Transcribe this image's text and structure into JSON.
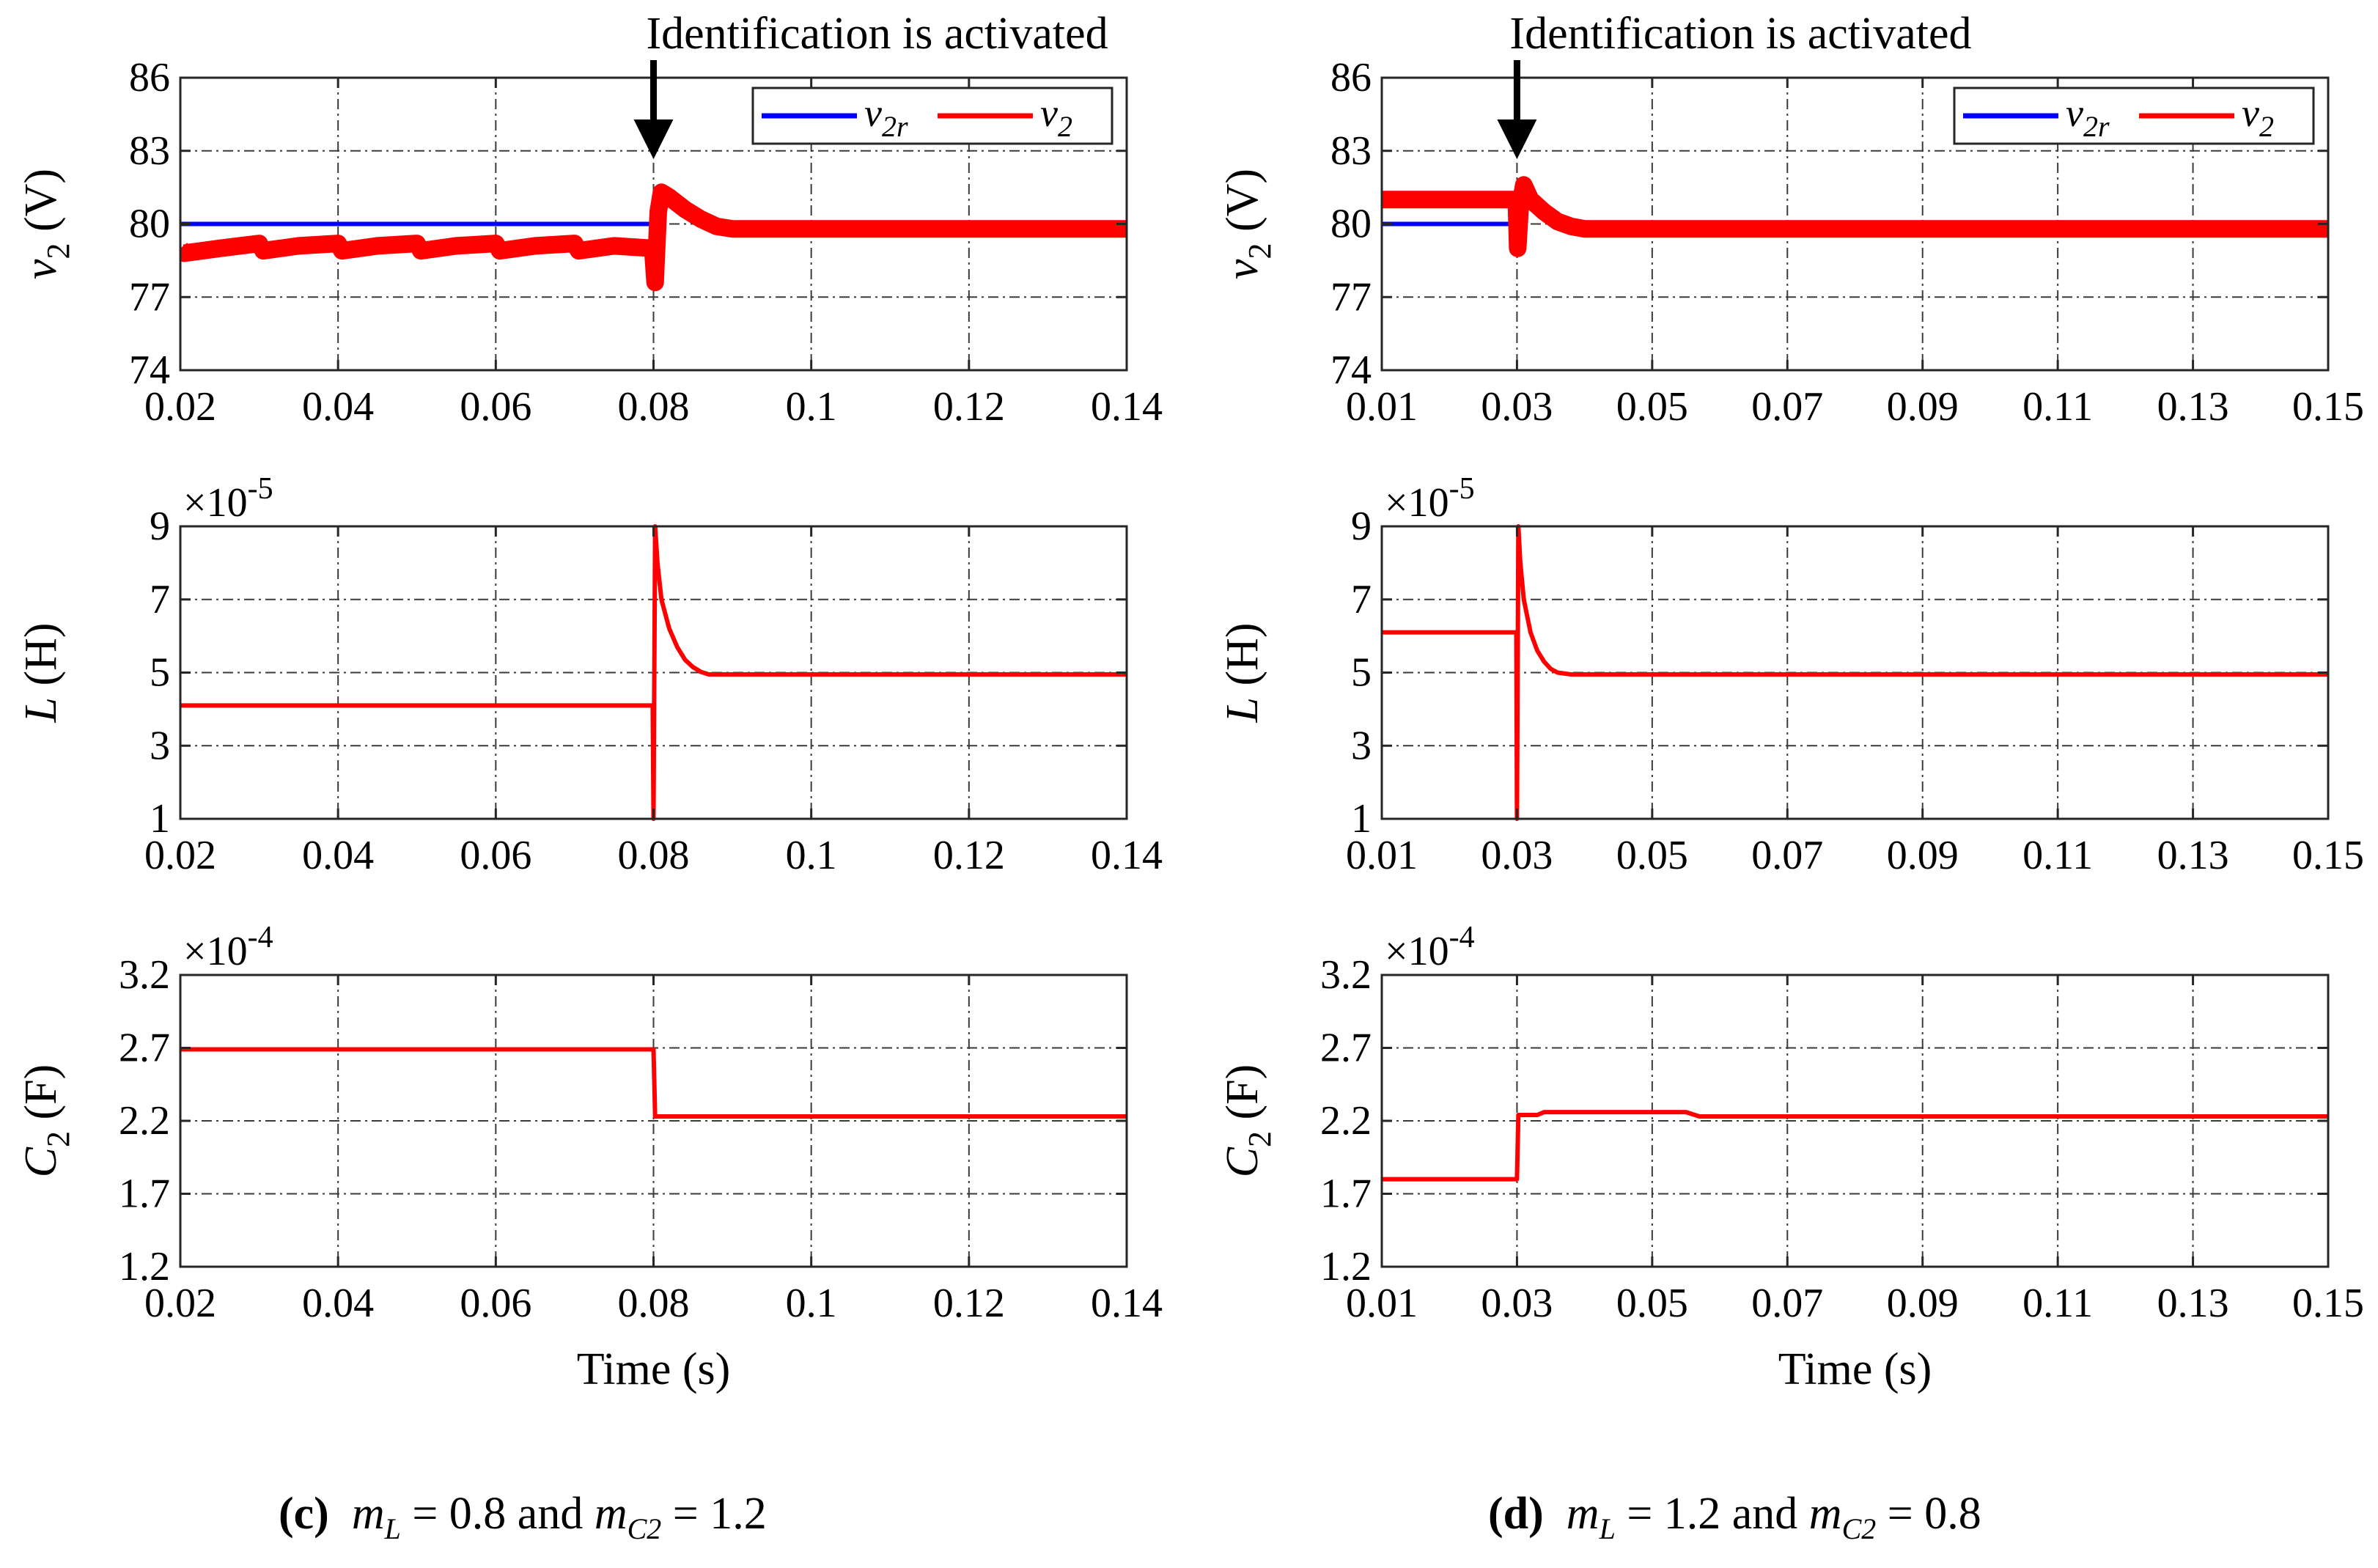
{
  "figure": {
    "annotation_text": "Identification is activated",
    "xlabel": "Time (s)"
  },
  "captions": {
    "c": {
      "letter": "(c)",
      "m1": "m",
      "m1_sub": "L",
      "eq1": " = 0.8 and ",
      "m2": "m",
      "m2_sub": "C2",
      "eq2": " = 1.2"
    },
    "d": {
      "letter": "(d)",
      "m1": "m",
      "m1_sub": "L",
      "eq1": " = 1.2 and ",
      "m2": "m",
      "m2_sub": "C2",
      "eq2": " = 0.8"
    }
  },
  "colors": {
    "reference": "#0000ff",
    "signal": "#ff0000",
    "grid": "#3a3a3a",
    "axis": "#262626"
  },
  "chart_data": [
    {
      "id": "c-v2",
      "type": "line",
      "column": "c",
      "row": 0,
      "ylabel_main": "v",
      "ylabel_sub": "2",
      "ylabel_unit": "(V)",
      "xlim": [
        0.02,
        0.14
      ],
      "ylim": [
        74,
        86
      ],
      "xticks": [
        0.02,
        0.04,
        0.06,
        0.08,
        0.1,
        0.12,
        0.14
      ],
      "xtick_labels": [
        "0.02",
        "0.04",
        "0.06",
        "0.08",
        "0.1",
        "0.12",
        "0.14"
      ],
      "yticks": [
        74,
        77,
        80,
        83,
        86
      ],
      "ytick_labels": [
        "74",
        "77",
        "80",
        "83",
        "86"
      ],
      "multiplier": "",
      "legend": {
        "position": "top-right",
        "entries": [
          {
            "main": "v",
            "sub": "2r"
          },
          {
            "main": "v",
            "sub": "2"
          }
        ]
      },
      "annotation_x": 0.08,
      "series": [
        {
          "name": "v2r",
          "color": "#0000ff",
          "width": 6,
          "points": [
            [
              0.02,
              80
            ],
            [
              0.08,
              80
            ]
          ]
        },
        {
          "name": "v2",
          "color": "#ff0000",
          "width": 24,
          "points": [
            [
              0.02,
              79.0
            ],
            [
              0.0205,
              78.8
            ],
            [
              0.025,
              79.0
            ],
            [
              0.03,
              79.2
            ],
            [
              0.0305,
              78.9
            ],
            [
              0.035,
              79.1
            ],
            [
              0.04,
              79.2
            ],
            [
              0.0405,
              78.9
            ],
            [
              0.045,
              79.1
            ],
            [
              0.05,
              79.2
            ],
            [
              0.0505,
              78.9
            ],
            [
              0.055,
              79.1
            ],
            [
              0.06,
              79.2
            ],
            [
              0.0605,
              78.9
            ],
            [
              0.065,
              79.1
            ],
            [
              0.07,
              79.2
            ],
            [
              0.0705,
              78.9
            ],
            [
              0.075,
              79.1
            ],
            [
              0.0799,
              79.0
            ],
            [
              0.0802,
              77.6
            ],
            [
              0.0806,
              80.5
            ],
            [
              0.081,
              81.3
            ],
            [
              0.082,
              81.1
            ],
            [
              0.084,
              80.6
            ],
            [
              0.086,
              80.2
            ],
            [
              0.088,
              79.9
            ],
            [
              0.09,
              79.8
            ],
            [
              0.1,
              79.8
            ],
            [
              0.12,
              79.8
            ],
            [
              0.14,
              79.8
            ]
          ]
        }
      ]
    },
    {
      "id": "c-L",
      "type": "line",
      "column": "c",
      "row": 1,
      "ylabel_main": "L",
      "ylabel_sub": "",
      "ylabel_unit": "(H)",
      "xlim": [
        0.02,
        0.14
      ],
      "ylim": [
        1,
        9
      ],
      "xticks": [
        0.02,
        0.04,
        0.06,
        0.08,
        0.1,
        0.12,
        0.14
      ],
      "xtick_labels": [
        "0.02",
        "0.04",
        "0.06",
        "0.08",
        "0.1",
        "0.12",
        "0.14"
      ],
      "yticks": [
        1,
        3,
        5,
        7,
        9
      ],
      "ytick_labels": [
        "1",
        "3",
        "5",
        "7",
        "9"
      ],
      "multiplier": "×10",
      "multiplier_exp": "-5",
      "series": [
        {
          "name": "L",
          "color": "#ff0000",
          "width": 6,
          "points": [
            [
              0.02,
              4.1
            ],
            [
              0.0799,
              4.1
            ],
            [
              0.08,
              1.0
            ],
            [
              0.0802,
              9.0
            ],
            [
              0.0805,
              8.0
            ],
            [
              0.081,
              7.0
            ],
            [
              0.082,
              6.2
            ],
            [
              0.083,
              5.7
            ],
            [
              0.084,
              5.35
            ],
            [
              0.085,
              5.15
            ],
            [
              0.086,
              5.02
            ],
            [
              0.087,
              4.95
            ],
            [
              0.09,
              4.95
            ],
            [
              0.14,
              4.95
            ]
          ]
        }
      ]
    },
    {
      "id": "c-C2",
      "type": "line",
      "column": "c",
      "row": 2,
      "ylabel_main": "C",
      "ylabel_sub": "2",
      "ylabel_unit": "(F)",
      "xlim": [
        0.02,
        0.14
      ],
      "ylim": [
        1.2,
        3.2
      ],
      "xticks": [
        0.02,
        0.04,
        0.06,
        0.08,
        0.1,
        0.12,
        0.14
      ],
      "xtick_labels": [
        "0.02",
        "0.04",
        "0.06",
        "0.08",
        "0.1",
        "0.12",
        "0.14"
      ],
      "yticks": [
        1.2,
        1.7,
        2.2,
        2.7,
        3.2
      ],
      "ytick_labels": [
        "1.2",
        "1.7",
        "2.2",
        "2.7",
        "3.2"
      ],
      "multiplier": "×10",
      "multiplier_exp": "-4",
      "series": [
        {
          "name": "C2",
          "color": "#ff0000",
          "width": 6,
          "points": [
            [
              0.02,
              2.69
            ],
            [
              0.08,
              2.69
            ],
            [
              0.0802,
              2.23
            ],
            [
              0.14,
              2.23
            ]
          ]
        }
      ]
    },
    {
      "id": "d-v2",
      "type": "line",
      "column": "d",
      "row": 0,
      "ylabel_main": "v",
      "ylabel_sub": "2",
      "ylabel_unit": "(V)",
      "xlim": [
        0.01,
        0.15
      ],
      "ylim": [
        74,
        86
      ],
      "xticks": [
        0.01,
        0.03,
        0.05,
        0.07,
        0.09,
        0.11,
        0.13,
        0.15
      ],
      "xtick_labels": [
        "0.01",
        "0.03",
        "0.05",
        "0.07",
        "0.09",
        "0.11",
        "0.13",
        "0.15"
      ],
      "yticks": [
        74,
        77,
        80,
        83,
        86
      ],
      "ytick_labels": [
        "74",
        "77",
        "80",
        "83",
        "86"
      ],
      "multiplier": "",
      "legend": {
        "position": "top-right",
        "entries": [
          {
            "main": "v",
            "sub": "2r"
          },
          {
            "main": "v",
            "sub": "2"
          }
        ]
      },
      "annotation_x": 0.03,
      "series": [
        {
          "name": "v2r",
          "color": "#0000ff",
          "width": 6,
          "points": [
            [
              0.01,
              80
            ],
            [
              0.03,
              80
            ]
          ]
        },
        {
          "name": "v2",
          "color": "#ff0000",
          "width": 24,
          "points": [
            [
              0.01,
              81.0
            ],
            [
              0.02,
              81.0
            ],
            [
              0.0299,
              81.0
            ],
            [
              0.0301,
              79.0
            ],
            [
              0.0305,
              80.8
            ],
            [
              0.031,
              81.6
            ],
            [
              0.032,
              81.0
            ],
            [
              0.034,
              80.5
            ],
            [
              0.036,
              80.1
            ],
            [
              0.038,
              79.9
            ],
            [
              0.04,
              79.8
            ],
            [
              0.06,
              79.8
            ],
            [
              0.1,
              79.8
            ],
            [
              0.15,
              79.8
            ]
          ]
        }
      ]
    },
    {
      "id": "d-L",
      "type": "line",
      "column": "d",
      "row": 1,
      "ylabel_main": "L",
      "ylabel_sub": "",
      "ylabel_unit": "(H)",
      "xlim": [
        0.01,
        0.15
      ],
      "ylim": [
        1,
        9
      ],
      "xticks": [
        0.01,
        0.03,
        0.05,
        0.07,
        0.09,
        0.11,
        0.13,
        0.15
      ],
      "xtick_labels": [
        "0.01",
        "0.03",
        "0.05",
        "0.07",
        "0.09",
        "0.11",
        "0.13",
        "0.15"
      ],
      "yticks": [
        1,
        3,
        5,
        7,
        9
      ],
      "ytick_labels": [
        "1",
        "3",
        "5",
        "7",
        "9"
      ],
      "multiplier": "×10",
      "multiplier_exp": "-5",
      "series": [
        {
          "name": "L",
          "color": "#ff0000",
          "width": 6,
          "points": [
            [
              0.01,
              6.1
            ],
            [
              0.0299,
              6.1
            ],
            [
              0.03,
              1.0
            ],
            [
              0.0302,
              9.0
            ],
            [
              0.0305,
              8.0
            ],
            [
              0.031,
              7.0
            ],
            [
              0.032,
              6.1
            ],
            [
              0.033,
              5.6
            ],
            [
              0.034,
              5.3
            ],
            [
              0.035,
              5.1
            ],
            [
              0.036,
              5.0
            ],
            [
              0.038,
              4.95
            ],
            [
              0.05,
              4.95
            ],
            [
              0.15,
              4.95
            ]
          ]
        }
      ]
    },
    {
      "id": "d-C2",
      "type": "line",
      "column": "d",
      "row": 2,
      "ylabel_main": "C",
      "ylabel_sub": "2",
      "ylabel_unit": "(F)",
      "xlim": [
        0.01,
        0.15
      ],
      "ylim": [
        1.2,
        3.2
      ],
      "xticks": [
        0.01,
        0.03,
        0.05,
        0.07,
        0.09,
        0.11,
        0.13,
        0.15
      ],
      "xtick_labels": [
        "0.01",
        "0.03",
        "0.05",
        "0.07",
        "0.09",
        "0.11",
        "0.13",
        "0.15"
      ],
      "yticks": [
        1.2,
        1.7,
        2.2,
        2.7,
        3.2
      ],
      "ytick_labels": [
        "1.2",
        "1.7",
        "2.2",
        "2.7",
        "3.2"
      ],
      "multiplier": "×10",
      "multiplier_exp": "-4",
      "series": [
        {
          "name": "C2",
          "color": "#ff0000",
          "width": 6,
          "points": [
            [
              0.01,
              1.8
            ],
            [
              0.03,
              1.8
            ],
            [
              0.0302,
              2.24
            ],
            [
              0.033,
              2.24
            ],
            [
              0.034,
              2.26
            ],
            [
              0.055,
              2.26
            ],
            [
              0.057,
              2.23
            ],
            [
              0.15,
              2.23
            ]
          ]
        }
      ]
    }
  ]
}
